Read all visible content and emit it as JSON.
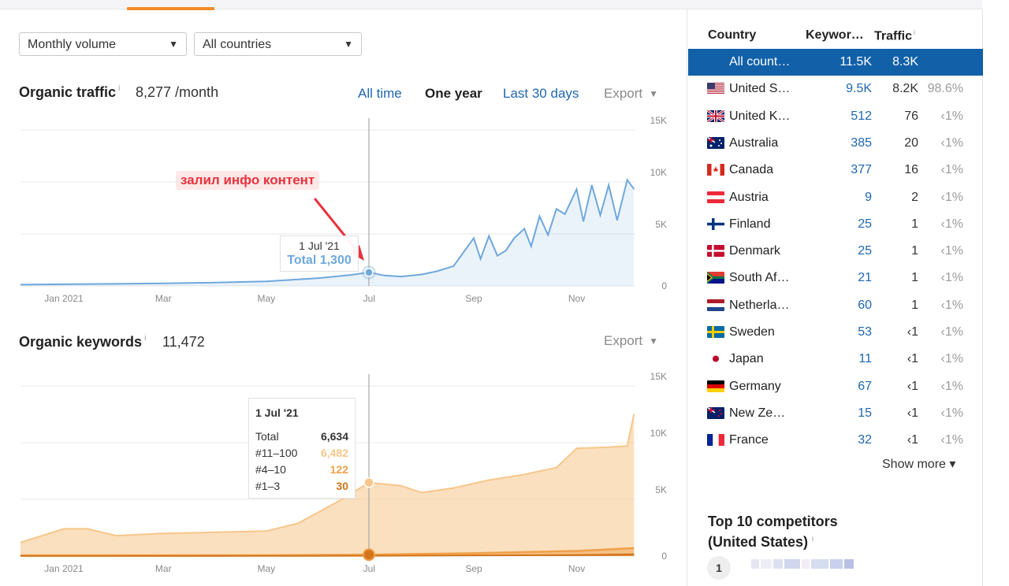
{
  "filters": {
    "volume": "Monthly volume",
    "countries": "All countries"
  },
  "organic_traffic": {
    "title": "Organic traffic",
    "info": "i",
    "value": "8,277 /month",
    "time_ranges": [
      "All time",
      "One year",
      "Last 30 days"
    ],
    "active_range": "One year",
    "export": "Export",
    "tooltip": {
      "date": "1 Jul '21",
      "total": "Total 1,300"
    },
    "annotation": "залил инфо контент"
  },
  "organic_keywords": {
    "title": "Organic keywords",
    "info": "i",
    "value": "11,472",
    "export": "Export",
    "tooltip": {
      "date": "1 Jul '21",
      "rows": [
        {
          "label": "Total",
          "value": "6,634",
          "color": "#333333"
        },
        {
          "label": "#11–100",
          "value": "6,482",
          "color": "#f7c68a"
        },
        {
          "label": "#4–10",
          "value": "122",
          "color": "#f0a04a"
        },
        {
          "label": "#1–3",
          "value": "30",
          "color": "#d2741a"
        }
      ]
    }
  },
  "chart_data": [
    {
      "type": "area",
      "title": "Organic traffic",
      "x_tick_labels": [
        "Jan 2021",
        "Mar",
        "May",
        "Jul",
        "Sep",
        "Nov"
      ],
      "y_tick_labels": [
        "15K",
        "10K",
        "5K",
        "0"
      ],
      "ylim": [
        0,
        15000
      ],
      "grid": true,
      "series": [
        {
          "color": "#6fa8dc",
          "x": [
            "2020-12-01",
            "2021-01-01",
            "2021-02-01",
            "2021-03-01",
            "2021-04-01",
            "2021-05-01",
            "2021-06-01",
            "2021-06-20",
            "2021-07-01",
            "2021-07-10",
            "2021-07-20",
            "2021-08-01",
            "2021-08-10",
            "2021-08-20",
            "2021-09-01",
            "2021-09-05",
            "2021-09-10",
            "2021-09-15",
            "2021-09-20",
            "2021-09-25",
            "2021-10-01",
            "2021-10-05",
            "2021-10-10",
            "2021-10-15",
            "2021-10-20",
            "2021-10-25",
            "2021-11-01",
            "2021-11-05",
            "2021-11-10",
            "2021-11-15",
            "2021-11-20",
            "2021-11-25",
            "2021-12-01",
            "2021-12-05"
          ],
          "values": [
            120,
            160,
            200,
            250,
            320,
            430,
            750,
            1050,
            1300,
            1000,
            900,
            1100,
            1400,
            1900,
            4600,
            2600,
            4800,
            2900,
            3400,
            4600,
            5500,
            3800,
            6700,
            4900,
            7400,
            6900,
            9300,
            6200,
            9700,
            6800,
            9700,
            6300,
            10200,
            9300
          ]
        }
      ]
    },
    {
      "type": "area",
      "title": "Organic keywords",
      "x_tick_labels": [
        "Jan 2021",
        "Mar",
        "May",
        "Jul",
        "Sep",
        "Nov"
      ],
      "y_tick_labels": [
        "15K",
        "10K",
        "5K",
        "0"
      ],
      "ylim": [
        0,
        15000
      ],
      "grid": true,
      "series": [
        {
          "name": "#11–100",
          "color": "#f7c68a",
          "x": [
            "2020-12-01",
            "2021-01-01",
            "2021-01-15",
            "2021-02-01",
            "2021-03-01",
            "2021-04-01",
            "2021-05-01",
            "2021-05-20",
            "2021-06-10",
            "2021-07-01",
            "2021-07-20",
            "2021-08-01",
            "2021-08-20",
            "2021-09-10",
            "2021-10-01",
            "2021-10-20",
            "2021-11-01",
            "2021-11-20",
            "2021-12-01",
            "2021-12-05"
          ],
          "values": [
            1200,
            2400,
            2400,
            1800,
            2000,
            2100,
            2200,
            2900,
            4600,
            6482,
            6200,
            5600,
            6000,
            6700,
            7200,
            7800,
            9500,
            9600,
            9700,
            12500
          ]
        },
        {
          "name": "#4–10",
          "color": "#f0a04a",
          "x": [
            "2020-12-01",
            "2021-05-01",
            "2021-07-01",
            "2021-09-01",
            "2021-11-01",
            "2021-12-05"
          ],
          "values": [
            60,
            70,
            122,
            250,
            450,
            700
          ]
        },
        {
          "name": "#1–3",
          "color": "#d2741a",
          "x": [
            "2020-12-01",
            "2021-05-01",
            "2021-07-01",
            "2021-09-01",
            "2021-11-01",
            "2021-12-05"
          ],
          "values": [
            10,
            12,
            30,
            60,
            100,
            150
          ]
        }
      ]
    }
  ],
  "country_table": {
    "headers": {
      "country": "Country",
      "keywords": "Keywor…",
      "traffic": "Traffic",
      "traffic_info": "i"
    },
    "rows": [
      {
        "name": "All count…",
        "keywords": "11.5K",
        "traffic": "8.3K",
        "pct": "",
        "flag": "none",
        "selected": true
      },
      {
        "name": "United S…",
        "keywords": "9.5K",
        "traffic": "8.2K",
        "pct": "98.6%",
        "flag": "us-flag-icon"
      },
      {
        "name": "United K…",
        "keywords": "512",
        "traffic": "76",
        "pct": "‹1%",
        "flag": "uk-flag-icon"
      },
      {
        "name": "Australia",
        "keywords": "385",
        "traffic": "20",
        "pct": "‹1%",
        "flag": "au-flag-icon"
      },
      {
        "name": "Canada",
        "keywords": "377",
        "traffic": "16",
        "pct": "‹1%",
        "flag": "ca-flag-icon"
      },
      {
        "name": "Austria",
        "keywords": "9",
        "traffic": "2",
        "pct": "‹1%",
        "flag": "at-flag-icon"
      },
      {
        "name": "Finland",
        "keywords": "25",
        "traffic": "1",
        "pct": "‹1%",
        "flag": "fi-flag-icon"
      },
      {
        "name": "Denmark",
        "keywords": "25",
        "traffic": "1",
        "pct": "‹1%",
        "flag": "dk-flag-icon"
      },
      {
        "name": "South Af…",
        "keywords": "21",
        "traffic": "1",
        "pct": "‹1%",
        "flag": "za-flag-icon"
      },
      {
        "name": "Netherla…",
        "keywords": "60",
        "traffic": "1",
        "pct": "‹1%",
        "flag": "nl-flag-icon"
      },
      {
        "name": "Sweden",
        "keywords": "53",
        "traffic": "‹1",
        "pct": "‹1%",
        "flag": "se-flag-icon"
      },
      {
        "name": "Japan",
        "keywords": "11",
        "traffic": "‹1",
        "pct": "‹1%",
        "flag": "jp-flag-icon"
      },
      {
        "name": "Germany",
        "keywords": "67",
        "traffic": "‹1",
        "pct": "‹1%",
        "flag": "de-flag-icon"
      },
      {
        "name": "New Ze…",
        "keywords": "15",
        "traffic": "‹1",
        "pct": "‹1%",
        "flag": "nz-flag-icon"
      },
      {
        "name": "France",
        "keywords": "32",
        "traffic": "‹1",
        "pct": "‹1%",
        "flag": "fr-flag-icon"
      }
    ],
    "show_more": "Show more ▾"
  },
  "competitors": {
    "title_line1": "Top 10 competitors",
    "title_line2": "(United States)",
    "info": "i",
    "first_rank": "1"
  }
}
